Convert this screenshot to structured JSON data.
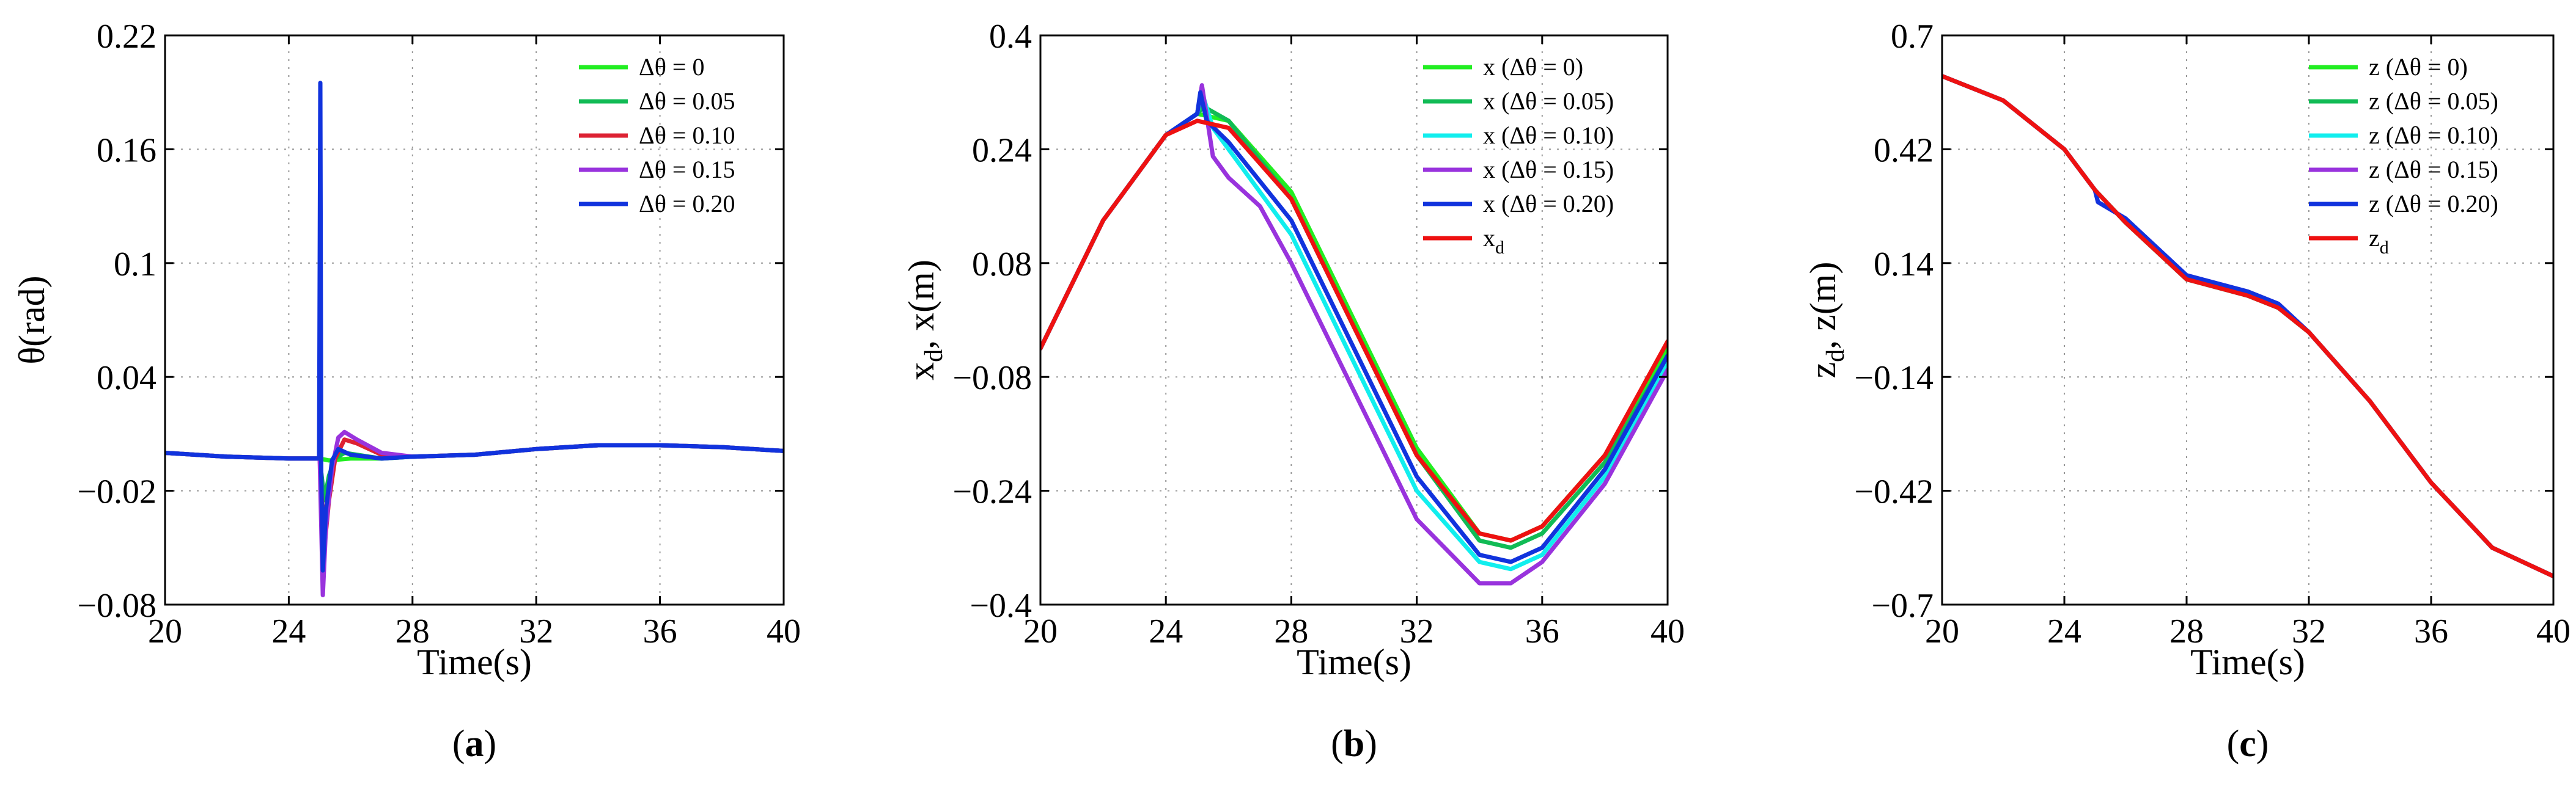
{
  "chart_data": [
    {
      "type": "line",
      "panel_label": {
        "open": "(",
        "letter": "a",
        "close": ")"
      },
      "xlabel": "Time(s)",
      "ylabel": "θ(rad)",
      "xlim": [
        20,
        40
      ],
      "ylim": [
        -0.08,
        0.22
      ],
      "xticks": [
        20,
        24,
        28,
        32,
        36,
        40
      ],
      "xtick_labels": [
        "20",
        "24",
        "28",
        "32",
        "36",
        "40"
      ],
      "yticks": [
        -0.08,
        -0.02,
        0.04,
        0.1,
        0.16,
        0.22
      ],
      "ytick_labels": [
        "−0.08",
        "−0.02",
        "0.04",
        "0.1",
        "0.16",
        "0.22"
      ],
      "grid": true,
      "legend_position": "top-right",
      "series": [
        {
          "name": "Δθ = 0",
          "color": "#22ee22",
          "x": [
            20,
            22,
            24,
            25,
            25.3,
            26,
            27,
            28,
            30,
            32,
            34,
            36,
            38,
            40
          ],
          "y": [
            0.0,
            -0.002,
            -0.003,
            -0.003,
            -0.004,
            -0.003,
            -0.003,
            -0.002,
            -0.001,
            0.002,
            0.004,
            0.004,
            0.003,
            0.001
          ]
        },
        {
          "name": "Δθ = 0.05",
          "color": "#11bb55",
          "x": [
            20,
            22,
            24,
            25,
            25.15,
            25.3,
            25.5,
            25.8,
            26.2,
            27,
            28,
            30,
            32,
            34,
            36,
            38,
            40
          ],
          "y": [
            0.0,
            -0.002,
            -0.003,
            -0.003,
            -0.025,
            -0.012,
            -0.003,
            0.0,
            -0.001,
            -0.003,
            -0.002,
            -0.001,
            0.002,
            0.004,
            0.004,
            0.003,
            0.001
          ]
        },
        {
          "name": "Δθ = 0.10",
          "color": "#dd2233",
          "x": [
            20,
            22,
            24,
            25,
            25.15,
            25.3,
            25.5,
            25.8,
            26.2,
            27,
            28,
            30,
            32,
            34,
            36,
            38,
            40
          ],
          "y": [
            0.0,
            -0.002,
            -0.003,
            -0.003,
            -0.05,
            -0.025,
            -0.003,
            0.007,
            0.005,
            -0.001,
            -0.002,
            -0.001,
            0.002,
            0.004,
            0.004,
            0.003,
            0.001
          ]
        },
        {
          "name": "Δθ = 0.15",
          "color": "#9933dd",
          "x": [
            20,
            22,
            24,
            25,
            25.1,
            25.2,
            25.4,
            25.6,
            25.8,
            26.2,
            27,
            28,
            30,
            32,
            34,
            36,
            38,
            40
          ],
          "y": [
            0.0,
            -0.002,
            -0.003,
            -0.003,
            -0.075,
            -0.04,
            -0.008,
            0.008,
            0.011,
            0.007,
            0.0,
            -0.002,
            -0.001,
            0.002,
            0.004,
            0.004,
            0.003,
            0.001
          ]
        },
        {
          "name": "Δθ = 0.20",
          "color": "#1133dd",
          "x": [
            20,
            22,
            24,
            24.98,
            25.02,
            25.05,
            25.1,
            25.2,
            25.4,
            25.6,
            26,
            27,
            28,
            30,
            32,
            34,
            36,
            38,
            40
          ],
          "y": [
            0.0,
            -0.002,
            -0.003,
            -0.003,
            0.195,
            -0.01,
            -0.062,
            -0.03,
            -0.004,
            0.002,
            -0.001,
            -0.003,
            -0.002,
            -0.001,
            0.002,
            0.004,
            0.004,
            0.003,
            0.001
          ]
        }
      ]
    },
    {
      "type": "line",
      "panel_label": {
        "open": "(",
        "letter": "b",
        "close": ")"
      },
      "xlabel": "Time(s)",
      "ylabel": {
        "main": "x",
        "sub": "d",
        "rest": ", x(m)"
      },
      "xlim": [
        20,
        40
      ],
      "ylim": [
        -0.4,
        0.4
      ],
      "xticks": [
        20,
        24,
        28,
        32,
        36,
        40
      ],
      "xtick_labels": [
        "20",
        "24",
        "28",
        "32",
        "36",
        "40"
      ],
      "yticks": [
        -0.4,
        -0.24,
        -0.08,
        0.08,
        0.24,
        0.4
      ],
      "ytick_labels": [
        "−0.4",
        "−0.24",
        "−0.08",
        "0.08",
        "0.24",
        "0.4"
      ],
      "grid": true,
      "legend_position": "top-right",
      "series": [
        {
          "name": "x (Δθ = 0)",
          "color": "#22ee22",
          "x": [
            20,
            22,
            24,
            25,
            26,
            28,
            30,
            32,
            34,
            35,
            36,
            38,
            40
          ],
          "y": [
            -0.04,
            0.14,
            0.26,
            0.29,
            0.28,
            0.18,
            0.0,
            -0.18,
            -0.3,
            -0.31,
            -0.29,
            -0.19,
            -0.04
          ]
        },
        {
          "name": "x (Δθ = 0.05)",
          "color": "#11bb55",
          "x": [
            20,
            22,
            24,
            25,
            25.2,
            26,
            28,
            30,
            32,
            34,
            35,
            36,
            38,
            40
          ],
          "y": [
            -0.04,
            0.14,
            0.26,
            0.29,
            0.3,
            0.28,
            0.17,
            -0.01,
            -0.19,
            -0.31,
            -0.32,
            -0.3,
            -0.2,
            -0.05
          ]
        },
        {
          "name": "x (Δθ = 0.10)",
          "color": "#11eeee",
          "x": [
            20,
            22,
            24,
            25,
            25.15,
            25.5,
            26,
            28,
            30,
            32,
            34,
            35,
            36,
            38,
            40
          ],
          "y": [
            -0.04,
            0.14,
            0.26,
            0.29,
            0.32,
            0.27,
            0.24,
            0.12,
            -0.06,
            -0.24,
            -0.34,
            -0.35,
            -0.33,
            -0.22,
            -0.06
          ]
        },
        {
          "name": "x (Δθ = 0.15)",
          "color": "#9933dd",
          "x": [
            20,
            22,
            24,
            25,
            25.15,
            25.5,
            26,
            27,
            28,
            30,
            32,
            34,
            35,
            36,
            38,
            40
          ],
          "y": [
            -0.04,
            0.14,
            0.26,
            0.29,
            0.33,
            0.23,
            0.2,
            0.16,
            0.08,
            -0.1,
            -0.28,
            -0.37,
            -0.37,
            -0.34,
            -0.23,
            -0.07
          ]
        },
        {
          "name": "x (Δθ = 0.20)",
          "color": "#1133dd",
          "x": [
            20,
            22,
            24,
            25,
            25.1,
            25.3,
            26,
            28,
            30,
            32,
            34,
            35,
            36,
            38,
            40
          ],
          "y": [
            -0.04,
            0.14,
            0.26,
            0.29,
            0.32,
            0.28,
            0.25,
            0.14,
            -0.04,
            -0.22,
            -0.33,
            -0.34,
            -0.32,
            -0.21,
            -0.05
          ]
        },
        {
          "name": "x_d",
          "color": "#ee1111",
          "x": [
            20,
            22,
            24,
            25,
            26,
            28,
            30,
            32,
            34,
            35,
            36,
            38,
            40
          ],
          "y": [
            -0.04,
            0.14,
            0.26,
            0.28,
            0.27,
            0.17,
            -0.01,
            -0.19,
            -0.3,
            -0.31,
            -0.29,
            -0.19,
            -0.03
          ]
        }
      ]
    },
    {
      "type": "line",
      "panel_label": {
        "open": "(",
        "letter": "c",
        "close": ")"
      },
      "xlabel": "Time(s)",
      "ylabel": {
        "main": "z",
        "sub": "d",
        "rest": ", z(m)"
      },
      "xlim": [
        20,
        40
      ],
      "ylim": [
        -0.7,
        0.7
      ],
      "xticks": [
        20,
        24,
        28,
        32,
        36,
        40
      ],
      "xtick_labels": [
        "20",
        "24",
        "28",
        "32",
        "36",
        "40"
      ],
      "yticks": [
        -0.7,
        -0.42,
        -0.14,
        0.14,
        0.42,
        0.7
      ],
      "ytick_labels": [
        "−0.7",
        "−0.42",
        "−0.14",
        "0.14",
        "0.42",
        "0.7"
      ],
      "grid": true,
      "legend_position": "top-right",
      "series": [
        {
          "name": "z (Δθ = 0)",
          "color": "#22ee22",
          "x": [
            20,
            22,
            24,
            25,
            26,
            28,
            30,
            31,
            32,
            34,
            36,
            38,
            40
          ],
          "y": [
            0.6,
            0.54,
            0.42,
            0.32,
            0.24,
            0.1,
            0.06,
            0.03,
            -0.03,
            -0.2,
            -0.4,
            -0.56,
            -0.63
          ]
        },
        {
          "name": "z (Δθ = 0.05)",
          "color": "#11bb55",
          "x": [
            20,
            22,
            24,
            25,
            26,
            28,
            30,
            31,
            32,
            34,
            36,
            38,
            40
          ],
          "y": [
            0.6,
            0.54,
            0.42,
            0.32,
            0.24,
            0.1,
            0.06,
            0.03,
            -0.03,
            -0.2,
            -0.4,
            -0.56,
            -0.63
          ]
        },
        {
          "name": "z (Δθ = 0.10)",
          "color": "#11eeee",
          "x": [
            20,
            22,
            24,
            25,
            26,
            28,
            30,
            31,
            32,
            34,
            36,
            38,
            40
          ],
          "y": [
            0.6,
            0.54,
            0.42,
            0.32,
            0.24,
            0.1,
            0.06,
            0.03,
            -0.03,
            -0.2,
            -0.4,
            -0.56,
            -0.63
          ]
        },
        {
          "name": "z (Δθ = 0.15)",
          "color": "#9933dd",
          "x": [
            20,
            22,
            24,
            25,
            25.1,
            26,
            28,
            30,
            31,
            32,
            34,
            36,
            38,
            40
          ],
          "y": [
            0.6,
            0.54,
            0.42,
            0.32,
            0.29,
            0.25,
            0.11,
            0.07,
            0.04,
            -0.03,
            -0.2,
            -0.4,
            -0.56,
            -0.63
          ]
        },
        {
          "name": "z (Δθ = 0.20)",
          "color": "#1133dd",
          "x": [
            20,
            22,
            24,
            25,
            25.1,
            26,
            28,
            30,
            31,
            32,
            34,
            36,
            38,
            40
          ],
          "y": [
            0.6,
            0.54,
            0.42,
            0.32,
            0.29,
            0.25,
            0.11,
            0.07,
            0.04,
            -0.03,
            -0.2,
            -0.4,
            -0.56,
            -0.63
          ]
        },
        {
          "name": "z_d",
          "color": "#ee1111",
          "x": [
            20,
            22,
            24,
            25,
            26,
            28,
            30,
            31,
            32,
            34,
            36,
            38,
            40
          ],
          "y": [
            0.6,
            0.54,
            0.42,
            0.32,
            0.24,
            0.1,
            0.06,
            0.03,
            -0.03,
            -0.2,
            -0.4,
            -0.56,
            -0.63
          ]
        }
      ]
    }
  ]
}
